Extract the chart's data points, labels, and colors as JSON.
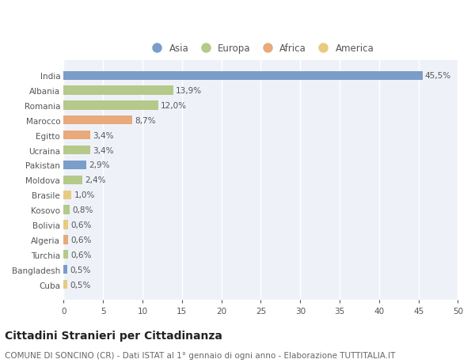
{
  "countries": [
    "India",
    "Albania",
    "Romania",
    "Marocco",
    "Egitto",
    "Ucraina",
    "Pakistan",
    "Moldova",
    "Brasile",
    "Kosovo",
    "Bolivia",
    "Algeria",
    "Turchia",
    "Bangladesh",
    "Cuba"
  ],
  "values": [
    45.5,
    13.9,
    12.0,
    8.7,
    3.4,
    3.4,
    2.9,
    2.4,
    1.0,
    0.8,
    0.6,
    0.6,
    0.6,
    0.5,
    0.5
  ],
  "labels": [
    "45,5%",
    "13,9%",
    "12,0%",
    "8,7%",
    "3,4%",
    "3,4%",
    "2,9%",
    "2,4%",
    "1,0%",
    "0,8%",
    "0,6%",
    "0,6%",
    "0,6%",
    "0,5%",
    "0,5%"
  ],
  "continents": [
    "Asia",
    "Europa",
    "Europa",
    "Africa",
    "Africa",
    "Europa",
    "Asia",
    "Europa",
    "America",
    "Europa",
    "America",
    "Africa",
    "Europa",
    "Asia",
    "America"
  ],
  "continent_colors": {
    "Asia": "#7b9dc9",
    "Europa": "#b5c98a",
    "Africa": "#e8aa7a",
    "America": "#e8ca80"
  },
  "legend_order": [
    "Asia",
    "Europa",
    "Africa",
    "America"
  ],
  "title": "Cittadini Stranieri per Cittadinanza",
  "subtitle": "COMUNE DI SONCINO (CR) - Dati ISTAT al 1° gennaio di ogni anno - Elaborazione TUTTITALIA.IT",
  "xlim": [
    0,
    50
  ],
  "xticks": [
    0,
    5,
    10,
    15,
    20,
    25,
    30,
    35,
    40,
    45,
    50
  ],
  "bg_color": "#ffffff",
  "plot_bg_color": "#eef2f8",
  "grid_color": "#ffffff",
  "bar_height": 0.6,
  "label_fontsize": 7.5,
  "tick_fontsize": 7.5,
  "title_fontsize": 10,
  "subtitle_fontsize": 7.5
}
